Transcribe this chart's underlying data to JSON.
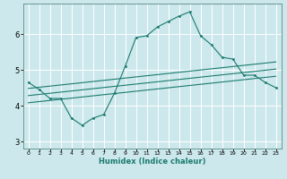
{
  "xlabel": "Humidex (Indice chaleur)",
  "bg_color": "#cce8ec",
  "line_color": "#1a7a6e",
  "grid_color": "#ffffff",
  "xlim": [
    -0.5,
    23.5
  ],
  "ylim": [
    2.8,
    6.85
  ],
  "xticks": [
    0,
    1,
    2,
    3,
    4,
    5,
    6,
    7,
    8,
    9,
    10,
    11,
    12,
    13,
    14,
    15,
    16,
    17,
    18,
    19,
    20,
    21,
    22,
    23
  ],
  "yticks": [
    3,
    4,
    5,
    6
  ],
  "line1_x": [
    0,
    1,
    2,
    3,
    4,
    5,
    6,
    7,
    8,
    9,
    10,
    11,
    12,
    13,
    14,
    15,
    16,
    17,
    18,
    19,
    20,
    21,
    22,
    23
  ],
  "line1_y": [
    4.65,
    4.45,
    4.2,
    4.2,
    3.65,
    3.45,
    3.65,
    3.75,
    4.35,
    5.1,
    5.9,
    5.95,
    6.2,
    6.35,
    6.5,
    6.62,
    5.95,
    5.7,
    5.35,
    5.3,
    4.85,
    4.85,
    4.65,
    4.5
  ],
  "line2_x": [
    0,
    23
  ],
  "line2_y": [
    4.08,
    4.82
  ],
  "line3_x": [
    0,
    23
  ],
  "line3_y": [
    4.28,
    5.02
  ],
  "line4_x": [
    0,
    23
  ],
  "line4_y": [
    4.48,
    5.22
  ],
  "xlabel_fontsize": 6,
  "ylabel_fontsize": 6,
  "xtick_fontsize": 4.5,
  "ytick_fontsize": 6
}
